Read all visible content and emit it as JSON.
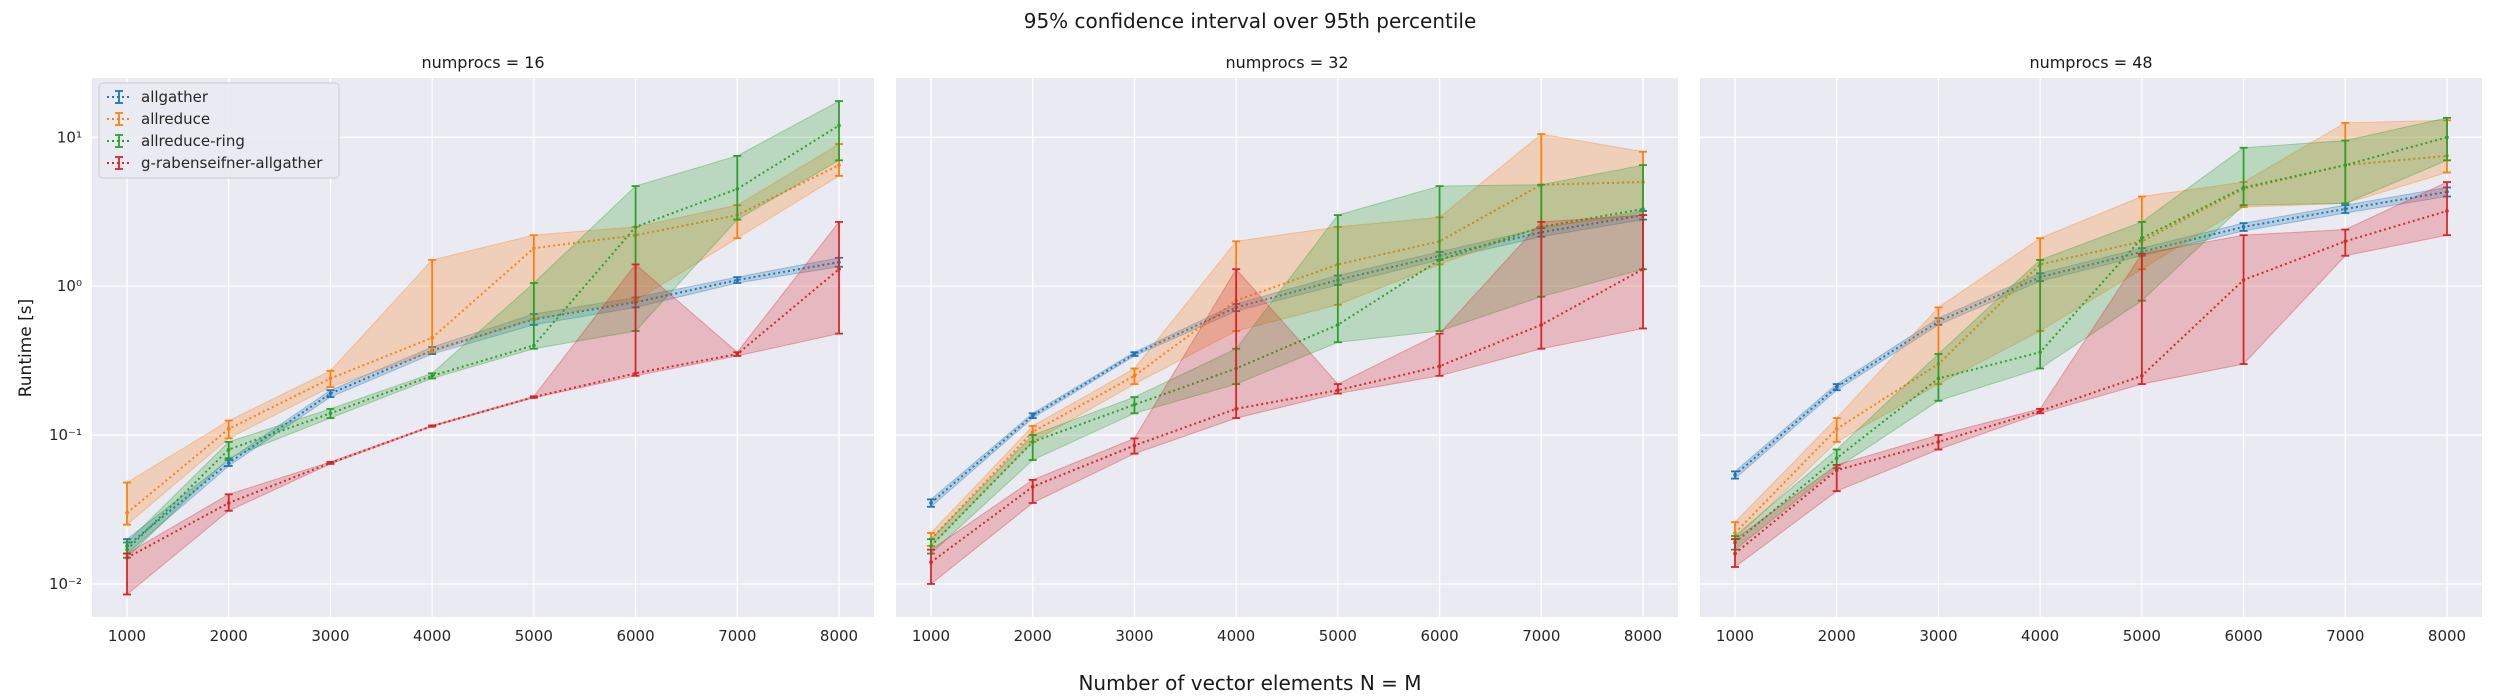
{
  "figure": {
    "suptitle": "95% confidence interval over 95th percentile",
    "xlabel": "Number of vector elements N = M",
    "ylabel": "Runtime [s]"
  },
  "legend": {
    "placement": "top-left",
    "entries": [
      "allgather",
      "allreduce",
      "allreduce-ring",
      "g-rabenseifner-allgather"
    ]
  },
  "colors": {
    "background": "#eaeaf2",
    "grid": "#ffffff",
    "allgather": "#1f77b4",
    "allreduce": "#ff7f0e",
    "allreduce-ring": "#2ca02c",
    "g-rabenseifner-allgather": "#d62728"
  },
  "chart_data": [
    {
      "type": "line",
      "title": "numprocs = 16",
      "x": [
        1000,
        2000,
        3000,
        4000,
        5000,
        6000,
        7000,
        8000
      ],
      "x_ticks": [
        "1000",
        "2000",
        "3000",
        "4000",
        "5000",
        "6000",
        "7000",
        "8000"
      ],
      "y_scale": "log",
      "ylim": [
        0.006,
        25
      ],
      "y_ticks": [
        0.01,
        0.1,
        1,
        10
      ],
      "y_tick_labels": [
        "10⁻²",
        "10⁻¹",
        "10⁰",
        "10¹"
      ],
      "grid": true,
      "series": [
        {
          "name": "allgather",
          "values": [
            0.018,
            0.065,
            0.19,
            0.37,
            0.6,
            0.78,
            1.1,
            1.45
          ],
          "lower": [
            0.016,
            0.062,
            0.18,
            0.35,
            0.55,
            0.72,
            1.05,
            1.35
          ],
          "upper": [
            0.02,
            0.068,
            0.2,
            0.39,
            0.65,
            0.84,
            1.15,
            1.55
          ]
        },
        {
          "name": "allreduce",
          "values": [
            0.03,
            0.11,
            0.24,
            0.45,
            1.8,
            2.2,
            3.0,
            6.5
          ],
          "lower": [
            0.025,
            0.095,
            0.21,
            0.36,
            0.6,
            0.8,
            2.1,
            5.5
          ],
          "upper": [
            0.048,
            0.125,
            0.27,
            1.5,
            2.2,
            2.5,
            3.5,
            9.0
          ]
        },
        {
          "name": "allreduce-ring",
          "values": [
            0.017,
            0.08,
            0.14,
            0.25,
            0.4,
            2.5,
            4.5,
            12.0
          ],
          "lower": [
            0.015,
            0.07,
            0.13,
            0.24,
            0.38,
            0.5,
            2.8,
            7.0
          ],
          "upper": [
            0.019,
            0.09,
            0.15,
            0.26,
            1.05,
            4.7,
            7.5,
            17.5
          ]
        },
        {
          "name": "g-rabenseifner-allgather",
          "values": [
            0.015,
            0.035,
            0.065,
            0.115,
            0.18,
            0.26,
            0.35,
            1.3
          ],
          "lower": [
            0.0085,
            0.031,
            0.064,
            0.114,
            0.178,
            0.25,
            0.34,
            0.48
          ],
          "upper": [
            0.016,
            0.04,
            0.066,
            0.116,
            0.182,
            1.4,
            0.36,
            2.7
          ]
        }
      ]
    },
    {
      "type": "line",
      "title": "numprocs = 32",
      "x": [
        1000,
        2000,
        3000,
        4000,
        5000,
        6000,
        7000,
        8000
      ],
      "x_ticks": [
        "1000",
        "2000",
        "3000",
        "4000",
        "5000",
        "6000",
        "7000",
        "8000"
      ],
      "y_scale": "log",
      "ylim": [
        0.006,
        25
      ],
      "y_ticks": [
        0.01,
        0.1,
        1,
        10
      ],
      "y_tick_labels": [
        "10⁻²",
        "10⁻¹",
        "10⁰",
        "10¹"
      ],
      "grid": true,
      "series": [
        {
          "name": "allgather",
          "values": [
            0.035,
            0.135,
            0.35,
            0.72,
            1.1,
            1.6,
            2.3,
            3.0
          ],
          "lower": [
            0.033,
            0.13,
            0.34,
            0.68,
            1.02,
            1.5,
            2.15,
            2.8
          ],
          "upper": [
            0.037,
            0.14,
            0.36,
            0.76,
            1.18,
            1.7,
            2.45,
            3.2
          ]
        },
        {
          "name": "allreduce",
          "values": [
            0.02,
            0.105,
            0.25,
            0.8,
            1.4,
            2.0,
            4.8,
            5.0
          ],
          "lower": [
            0.018,
            0.09,
            0.22,
            0.5,
            0.75,
            1.4,
            2.5,
            3.0
          ],
          "upper": [
            0.022,
            0.115,
            0.28,
            2.0,
            2.5,
            2.9,
            10.5,
            8.0
          ]
        },
        {
          "name": "allreduce-ring",
          "values": [
            0.018,
            0.09,
            0.16,
            0.28,
            0.55,
            1.5,
            2.5,
            3.3
          ],
          "lower": [
            0.016,
            0.068,
            0.14,
            0.22,
            0.42,
            0.5,
            0.85,
            1.3
          ],
          "upper": [
            0.02,
            0.1,
            0.18,
            0.38,
            3.0,
            4.7,
            4.8,
            6.5
          ]
        },
        {
          "name": "g-rabenseifner-allgather",
          "values": [
            0.014,
            0.045,
            0.085,
            0.15,
            0.2,
            0.29,
            0.55,
            1.3
          ],
          "lower": [
            0.01,
            0.035,
            0.075,
            0.13,
            0.19,
            0.25,
            0.38,
            0.52
          ],
          "upper": [
            0.017,
            0.05,
            0.095,
            1.3,
            0.22,
            0.48,
            2.7,
            3.0
          ]
        }
      ]
    },
    {
      "type": "line",
      "title": "numprocs = 48",
      "x": [
        1000,
        2000,
        3000,
        4000,
        5000,
        6000,
        7000,
        8000
      ],
      "x_ticks": [
        "1000",
        "2000",
        "3000",
        "4000",
        "5000",
        "6000",
        "7000",
        "8000"
      ],
      "y_scale": "log",
      "ylim": [
        0.006,
        25
      ],
      "y_ticks": [
        0.01,
        0.1,
        1,
        10
      ],
      "y_tick_labels": [
        "10⁻²",
        "10⁻¹",
        "10⁰",
        "10¹"
      ],
      "grid": true,
      "series": [
        {
          "name": "allgather",
          "values": [
            0.054,
            0.21,
            0.58,
            1.15,
            1.7,
            2.5,
            3.3,
            4.3
          ],
          "lower": [
            0.051,
            0.2,
            0.55,
            1.08,
            1.6,
            2.35,
            3.1,
            4.0
          ],
          "upper": [
            0.057,
            0.22,
            0.61,
            1.22,
            1.8,
            2.65,
            3.5,
            4.6
          ]
        },
        {
          "name": "allreduce",
          "values": [
            0.022,
            0.11,
            0.3,
            1.4,
            2.0,
            4.5,
            6.5,
            7.5
          ],
          "lower": [
            0.02,
            0.09,
            0.22,
            0.5,
            1.3,
            3.4,
            3.6,
            5.8
          ],
          "upper": [
            0.026,
            0.13,
            0.72,
            2.1,
            4.0,
            5.0,
            12.5,
            13.0
          ]
        },
        {
          "name": "allreduce-ring",
          "values": [
            0.019,
            0.07,
            0.24,
            0.36,
            2.1,
            4.6,
            6.5,
            10.0
          ],
          "lower": [
            0.017,
            0.06,
            0.17,
            0.28,
            0.8,
            3.5,
            3.6,
            7.0
          ],
          "upper": [
            0.021,
            0.08,
            0.35,
            1.5,
            2.7,
            8.5,
            9.5,
            13.5
          ]
        },
        {
          "name": "g-rabenseifner-allgather",
          "values": [
            0.016,
            0.058,
            0.09,
            0.145,
            0.25,
            1.1,
            2.0,
            3.2
          ],
          "lower": [
            0.013,
            0.042,
            0.08,
            0.14,
            0.22,
            0.3,
            1.6,
            2.2
          ],
          "upper": [
            0.02,
            0.063,
            0.1,
            0.15,
            1.65,
            2.2,
            2.4,
            5.0
          ]
        }
      ]
    }
  ]
}
